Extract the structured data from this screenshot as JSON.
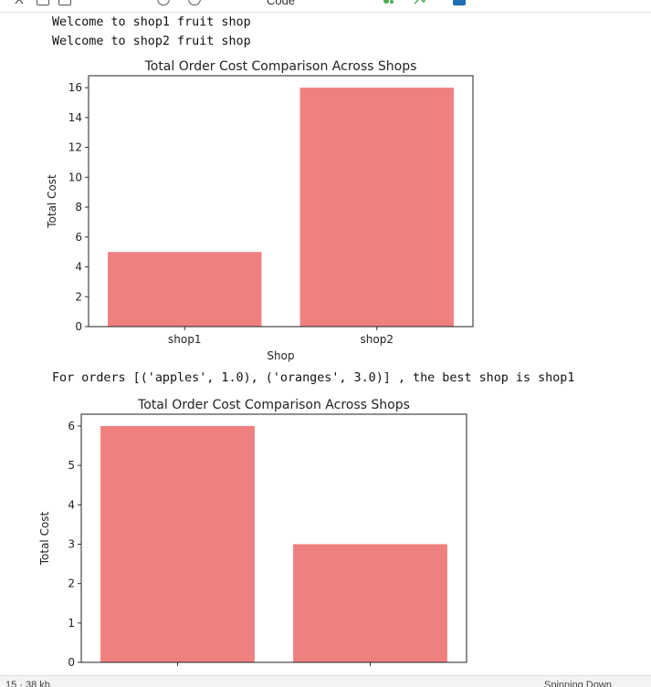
{
  "toolbar": {
    "icons": [
      "cut-icon",
      "copy-icon",
      "paste-icon",
      "undo-icon",
      "stop-icon",
      "restart-icon",
      "run-all-icon"
    ],
    "cell_type_label": "Code"
  },
  "output": {
    "line1": "Welcome to shop1 fruit shop",
    "line2": "Welcome to shop2 fruit shop",
    "line3": "For orders [('apples', 1.0), ('oranges', 3.0)] , the best shop is shop1"
  },
  "chart_data": [
    {
      "type": "bar",
      "title": "Total Order Cost Comparison Across Shops",
      "categories": [
        "shop1",
        "shop2"
      ],
      "values": [
        5,
        16
      ],
      "xlabel": "Shop",
      "ylabel": "Total Cost",
      "ylim": [
        0,
        16.8
      ],
      "yticks": [
        0,
        2,
        4,
        6,
        8,
        10,
        12,
        14,
        16
      ],
      "bar_color": "#f08080",
      "grid": false
    },
    {
      "type": "bar",
      "title": "Total Order Cost Comparison Across Shops",
      "categories": [
        "",
        ""
      ],
      "values": [
        6,
        3
      ],
      "xlabel": "",
      "ylabel": "Total Cost",
      "ylim": [
        0,
        6.3
      ],
      "yticks": [
        0,
        1,
        2,
        3,
        4,
        5,
        6
      ],
      "bar_color": "#f08080",
      "grid": false
    }
  ],
  "statusbar": {
    "left": "15 · 38 kb",
    "right": "Spinning Down"
  }
}
